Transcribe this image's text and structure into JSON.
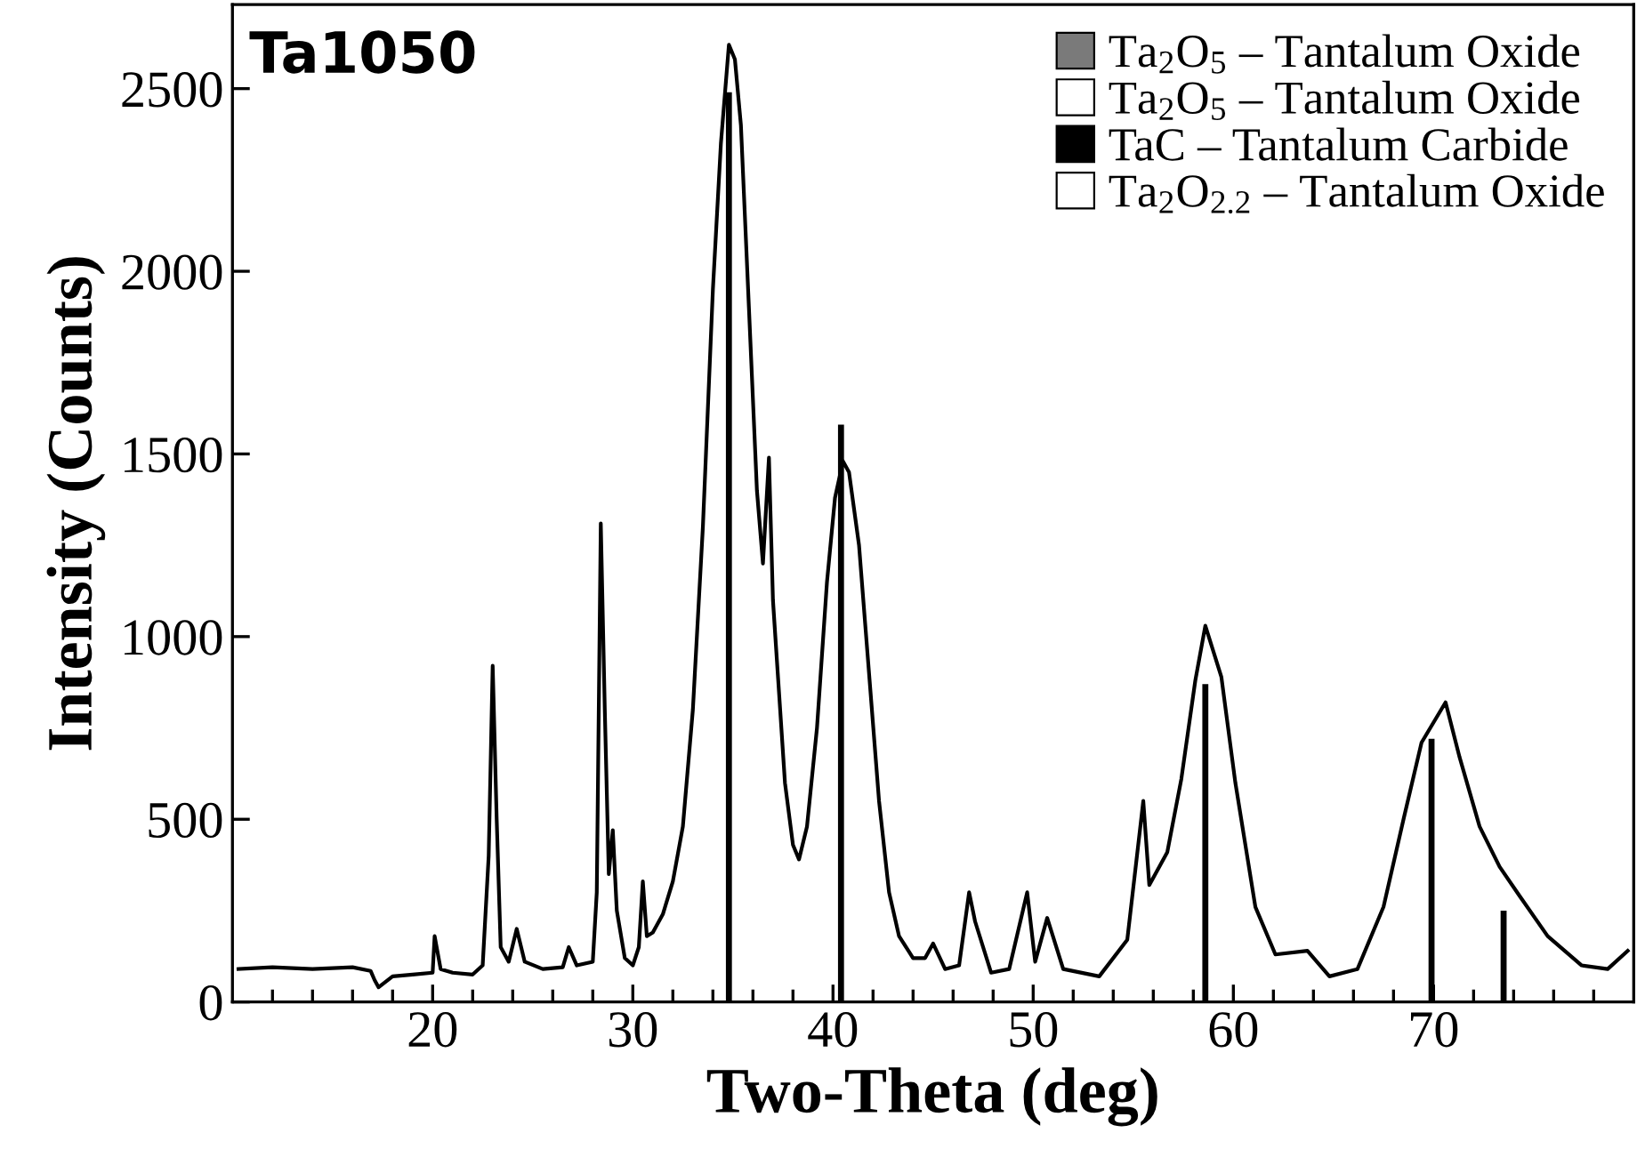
{
  "chart_data": {
    "type": "line",
    "xlabel": "Two-Theta (deg)",
    "ylabel": "Intensity (Counts)",
    "annotations": [
      "Ta1050"
    ],
    "xlim": [
      10,
      80
    ],
    "ylim": [
      0,
      2730
    ],
    "xticks": [
      {
        "value": 12,
        "label": null
      },
      {
        "value": 14,
        "label": null
      },
      {
        "value": 16,
        "label": null
      },
      {
        "value": 18,
        "label": null
      },
      20,
      {
        "value": 22,
        "label": null
      },
      {
        "value": 24,
        "label": null
      },
      {
        "value": 26,
        "label": null
      },
      {
        "value": 28,
        "label": null
      },
      30,
      {
        "value": 32,
        "label": null
      },
      {
        "value": 34,
        "label": null
      },
      {
        "value": 36,
        "label": null
      },
      {
        "value": 38,
        "label": null
      },
      40,
      {
        "value": 42,
        "label": null
      },
      {
        "value": 44,
        "label": null
      },
      {
        "value": 46,
        "label": null
      },
      {
        "value": 48,
        "label": null
      },
      50,
      {
        "value": 52,
        "label": null
      },
      {
        "value": 54,
        "label": null
      },
      {
        "value": 56,
        "label": null
      },
      {
        "value": 58,
        "label": null
      },
      60,
      {
        "value": 62,
        "label": null
      },
      {
        "value": 64,
        "label": null
      },
      {
        "value": 66,
        "label": null
      },
      {
        "value": 68,
        "label": null
      },
      70,
      {
        "value": 72,
        "label": null
      },
      {
        "value": 74,
        "label": null
      },
      {
        "value": 76,
        "label": null
      },
      {
        "value": 78,
        "label": null
      }
    ],
    "yticks": [
      0,
      500,
      1000,
      1500,
      2000,
      2500
    ],
    "grid": false,
    "legend": "top right",
    "series": [
      {
        "color": "#000000",
        "x": [
          10.3,
          12,
          14,
          16,
          16.9,
          17.1,
          17.3,
          18,
          19,
          20,
          20.1,
          20.4,
          21,
          22,
          22.5,
          22.8,
          23.0,
          23.2,
          23.4,
          23.8,
          24.2,
          24.6,
          25.5,
          26.5,
          26.8,
          27.2,
          28,
          28.2,
          28.4,
          28.6,
          28.8,
          29.0,
          29.2,
          29.6,
          30,
          30.3,
          30.5,
          30.7,
          31,
          31.5,
          32,
          32.5,
          33,
          33.5,
          34,
          34.4,
          34.8,
          35.1,
          35.4,
          35.8,
          36.2,
          36.5,
          36.8,
          37.0,
          37.3,
          37.6,
          38.0,
          38.3,
          38.7,
          39.2,
          39.7,
          40.1,
          40.5,
          40.8,
          41.3,
          41.8,
          42.3,
          42.8,
          43.3,
          44,
          44.6,
          45.0,
          45.6,
          46.3,
          46.8,
          47.1,
          47.9,
          48.8,
          49.7,
          50.1,
          50.7,
          51.5,
          53.3,
          54.7,
          55.5,
          55.8,
          56.7,
          57.4,
          58.1,
          58.6,
          59.4,
          60.1,
          61.1,
          62.1,
          63.7,
          64.8,
          66.2,
          67.5,
          68.5,
          69.4,
          70.6,
          71.3,
          72.3,
          73.3,
          74.3,
          75.7,
          77.4,
          78.7,
          79.7
        ],
        "values": [
          90,
          95,
          90,
          95,
          85,
          60,
          40,
          70,
          75,
          80,
          180,
          90,
          80,
          75,
          100,
          400,
          920,
          500,
          150,
          110,
          200,
          110,
          90,
          95,
          150,
          100,
          110,
          300,
          1310,
          800,
          350,
          470,
          250,
          120,
          100,
          150,
          330,
          180,
          190,
          240,
          330,
          480,
          800,
          1300,
          1950,
          2350,
          2620,
          2580,
          2400,
          1900,
          1400,
          1200,
          1490,
          1100,
          850,
          600,
          430,
          390,
          480,
          750,
          1150,
          1380,
          1480,
          1450,
          1250,
          900,
          550,
          300,
          180,
          120,
          120,
          160,
          90,
          100,
          300,
          220,
          80,
          90,
          300,
          110,
          230,
          90,
          70,
          170,
          550,
          320,
          410,
          610,
          880,
          1030,
          890,
          600,
          260,
          130,
          140,
          70,
          90,
          260,
          500,
          710,
          820,
          670,
          480,
          370,
          290,
          180,
          100,
          90,
          140
        ]
      },
      {
        "type": "bar",
        "name": "Ta$_{2}$O$_{5}$ – Tantalum Oxide",
        "color": "#7a7a7a"
      },
      {
        "type": "bar",
        "name": "Ta$_{2}$O$_{5}$ – Tantalum Oxide",
        "color": "#ffffff"
      },
      {
        "type": "bar",
        "name": "TaC – Tantalum Carbide",
        "color": "#000000",
        "x": [
          34.8,
          40.4,
          58.6,
          69.9,
          73.5
        ],
        "values": [
          2490,
          1580,
          870,
          720,
          250
        ]
      },
      {
        "type": "bar",
        "name": "Ta$_{2}$O$_{2.2}$ – Tantalum Oxide",
        "color": "#ffffff"
      }
    ]
  }
}
